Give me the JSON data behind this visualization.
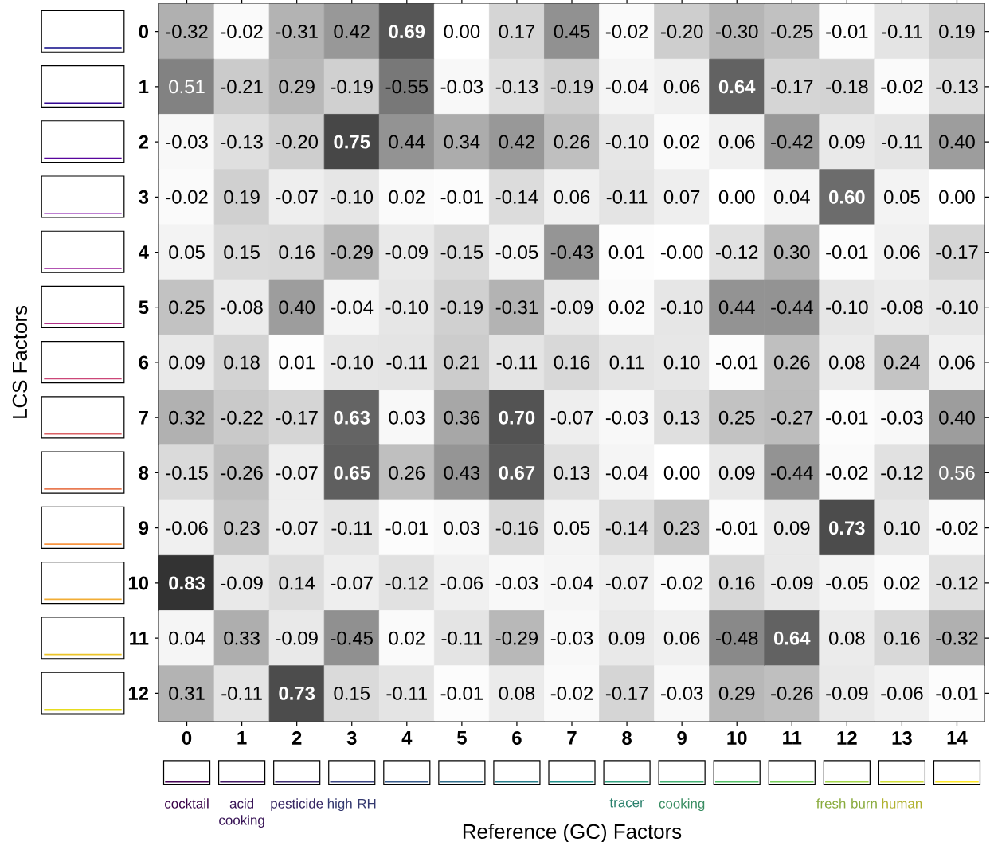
{
  "chart_data": {
    "type": "heatmap",
    "xlabel": "Reference (GC) Factors",
    "ylabel": "LCS Factors",
    "categories": [
      "0",
      "1",
      "2",
      "3",
      "4",
      "5",
      "6",
      "7",
      "8",
      "9",
      "10",
      "11",
      "12",
      "13",
      "14"
    ],
    "y_categories": [
      "0",
      "1",
      "2",
      "3",
      "4",
      "5",
      "6",
      "7",
      "8",
      "9",
      "10",
      "11",
      "12"
    ],
    "cells": [
      [
        -0.32,
        -0.02,
        -0.31,
        0.42,
        0.69,
        0.0,
        0.17,
        0.45,
        -0.02,
        -0.2,
        -0.3,
        -0.25,
        -0.01,
        -0.11,
        0.19
      ],
      [
        0.51,
        -0.21,
        0.29,
        -0.19,
        -0.55,
        -0.03,
        -0.13,
        -0.19,
        -0.04,
        0.06,
        0.64,
        -0.17,
        -0.18,
        -0.02,
        -0.13
      ],
      [
        -0.03,
        -0.13,
        -0.2,
        0.75,
        0.44,
        0.34,
        0.42,
        0.26,
        -0.1,
        0.02,
        0.06,
        -0.42,
        0.09,
        -0.11,
        0.4
      ],
      [
        -0.02,
        0.19,
        -0.07,
        -0.1,
        0.02,
        -0.01,
        -0.14,
        0.06,
        -0.11,
        0.07,
        0.0,
        0.04,
        0.6,
        0.05,
        0.0
      ],
      [
        0.05,
        0.15,
        0.16,
        -0.29,
        -0.09,
        -0.15,
        -0.05,
        -0.43,
        0.01,
        -0.0,
        -0.12,
        0.3,
        -0.01,
        0.06,
        -0.17
      ],
      [
        0.25,
        -0.08,
        0.4,
        -0.04,
        -0.1,
        -0.19,
        -0.31,
        -0.09,
        0.02,
        -0.1,
        0.44,
        -0.44,
        -0.1,
        -0.08,
        -0.1
      ],
      [
        0.09,
        0.18,
        0.01,
        -0.1,
        -0.11,
        0.21,
        -0.11,
        0.16,
        0.11,
        0.1,
        -0.01,
        0.26,
        0.08,
        0.24,
        0.06
      ],
      [
        0.32,
        -0.22,
        -0.17,
        0.63,
        0.03,
        0.36,
        0.7,
        -0.07,
        -0.03,
        0.13,
        0.25,
        -0.27,
        -0.01,
        -0.03,
        0.4
      ],
      [
        -0.15,
        -0.26,
        -0.07,
        0.65,
        0.26,
        0.43,
        0.67,
        0.13,
        -0.04,
        0.0,
        0.09,
        -0.44,
        -0.02,
        -0.12,
        0.56
      ],
      [
        -0.06,
        0.23,
        -0.07,
        -0.11,
        -0.01,
        0.03,
        -0.16,
        0.05,
        -0.14,
        0.23,
        -0.01,
        0.09,
        0.73,
        0.1,
        -0.02
      ],
      [
        0.83,
        -0.09,
        0.14,
        -0.07,
        -0.12,
        -0.06,
        -0.03,
        -0.04,
        -0.07,
        -0.02,
        0.16,
        -0.09,
        -0.05,
        0.02,
        -0.12
      ],
      [
        0.04,
        0.33,
        -0.09,
        -0.45,
        0.02,
        -0.11,
        -0.29,
        -0.03,
        0.09,
        0.06,
        -0.48,
        0.64,
        0.08,
        0.16,
        -0.32
      ],
      [
        0.31,
        -0.11,
        0.73,
        0.15,
        -0.11,
        -0.01,
        0.08,
        -0.02,
        -0.17,
        -0.03,
        0.29,
        -0.26,
        -0.09,
        -0.06,
        -0.01
      ]
    ],
    "cell_labels": [
      [
        "-0.32",
        "-0.02",
        "-0.31",
        "0.42",
        "0.69",
        "0.00",
        "0.17",
        "0.45",
        "-0.02",
        "-0.20",
        "-0.30",
        "-0.25",
        "-0.01",
        "-0.11",
        "0.19"
      ],
      [
        "0.51",
        "-0.21",
        "0.29",
        "-0.19",
        "-0.55",
        "-0.03",
        "-0.13",
        "-0.19",
        "-0.04",
        "0.06",
        "0.64",
        "-0.17",
        "-0.18",
        "-0.02",
        "-0.13"
      ],
      [
        "-0.03",
        "-0.13",
        "-0.20",
        "0.75",
        "0.44",
        "0.34",
        "0.42",
        "0.26",
        "-0.10",
        "0.02",
        "0.06",
        "-0.42",
        "0.09",
        "-0.11",
        "0.40"
      ],
      [
        "-0.02",
        "0.19",
        "-0.07",
        "-0.10",
        "0.02",
        "-0.01",
        "-0.14",
        "0.06",
        "-0.11",
        "0.07",
        "0.00",
        "0.04",
        "0.60",
        "0.05",
        "0.00"
      ],
      [
        "0.05",
        "0.15",
        "0.16",
        "-0.29",
        "-0.09",
        "-0.15",
        "-0.05",
        "-0.43",
        "0.01",
        "-0.00",
        "-0.12",
        "0.30",
        "-0.01",
        "0.06",
        "-0.17"
      ],
      [
        "0.25",
        "-0.08",
        "0.40",
        "-0.04",
        "-0.10",
        "-0.19",
        "-0.31",
        "-0.09",
        "0.02",
        "-0.10",
        "0.44",
        "-0.44",
        "-0.10",
        "-0.08",
        "-0.10"
      ],
      [
        "0.09",
        "0.18",
        "0.01",
        "-0.10",
        "-0.11",
        "0.21",
        "-0.11",
        "0.16",
        "0.11",
        "0.10",
        "-0.01",
        "0.26",
        "0.08",
        "0.24",
        "0.06"
      ],
      [
        "0.32",
        "-0.22",
        "-0.17",
        "0.63",
        "0.03",
        "0.36",
        "0.70",
        "-0.07",
        "-0.03",
        "0.13",
        "0.25",
        "-0.27",
        "-0.01",
        "-0.03",
        "0.40"
      ],
      [
        "-0.15",
        "-0.26",
        "-0.07",
        "0.65",
        "0.26",
        "0.43",
        "0.67",
        "0.13",
        "-0.04",
        "0.00",
        "0.09",
        "-0.44",
        "-0.02",
        "-0.12",
        "0.56"
      ],
      [
        "-0.06",
        "0.23",
        "-0.07",
        "-0.11",
        "-0.01",
        "0.03",
        "-0.16",
        "0.05",
        "-0.14",
        "0.23",
        "-0.01",
        "0.09",
        "0.73",
        "0.10",
        "-0.02"
      ],
      [
        "0.83",
        "-0.09",
        "0.14",
        "-0.07",
        "-0.12",
        "-0.06",
        "-0.03",
        "-0.04",
        "-0.07",
        "-0.02",
        "0.16",
        "-0.09",
        "-0.05",
        "0.02",
        "-0.12"
      ],
      [
        "0.04",
        "0.33",
        "-0.09",
        "-0.45",
        "0.02",
        "-0.11",
        "-0.29",
        "-0.03",
        "0.09",
        "0.06",
        "-0.48",
        "0.64",
        "0.08",
        "0.16",
        "-0.32"
      ],
      [
        "0.31",
        "-0.11",
        "0.73",
        "0.15",
        "-0.11",
        "-0.01",
        "0.08",
        "-0.02",
        "-0.17",
        "-0.03",
        "0.29",
        "-0.26",
        "-0.09",
        "-0.06",
        "-0.01"
      ]
    ],
    "annotations": [
      "cocktail",
      "acid cooking",
      "pesticide",
      "high RH",
      "tracer",
      "cooking",
      "fresh burn",
      "human"
    ]
  }
}
